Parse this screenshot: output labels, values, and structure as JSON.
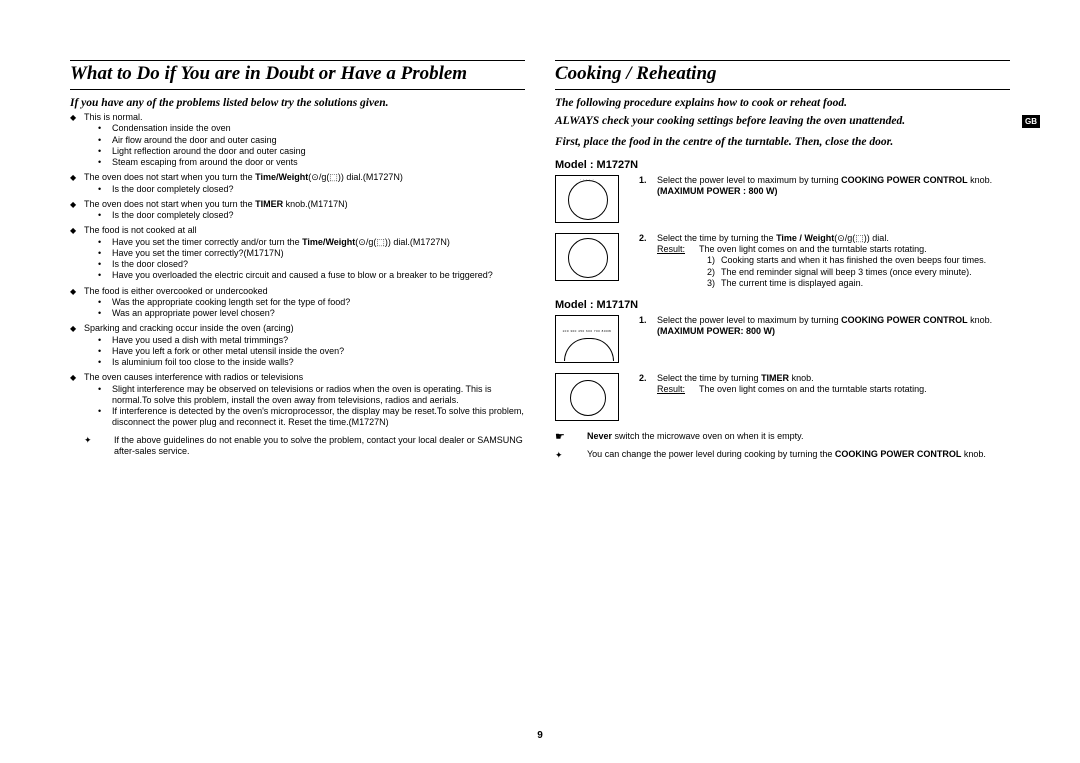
{
  "page_number": "9",
  "gb_badge": "GB",
  "left": {
    "title": "What to Do if You are in Doubt or Have a Problem",
    "intro": "If you have any of the problems listed below try the solutions given.",
    "blocks": [
      {
        "lead": "This is normal.",
        "subs": [
          "Condensation inside the oven",
          "Air flow around the door and outer casing",
          "Light reflection around the door and outer casing",
          "Steam escaping from around the door or vents"
        ]
      },
      {
        "lead_pre": "The oven does not start when you turn the ",
        "lead_bold": "Time/Weight",
        "lead_post": "(⊙/g(⬚)) dial.(M1727N)",
        "subs": [
          "Is the door completely closed?"
        ]
      },
      {
        "lead_pre": "The oven does not start when you turn the ",
        "lead_bold": "TIMER",
        "lead_post": " knob.(M1717N)",
        "subs": [
          "Is the door completely closed?"
        ]
      },
      {
        "lead": "The food is not cooked at all",
        "subs_rich": [
          {
            "pre": "Have you set the timer correctly and/or  turn the ",
            "bold": "Time/Weight",
            "post": "(⊙/g(⬚)) dial.(M1727N)"
          },
          {
            "pre": "Have you set the timer correctly?(M1717N)"
          },
          {
            "pre": "Is the door closed?"
          },
          {
            "pre": "Have you overloaded the electric circuit and caused a fuse to blow or a breaker to be triggered?"
          }
        ]
      },
      {
        "lead": "The food is either overcooked or undercooked",
        "subs": [
          "Was the appropriate cooking length set for the type of food?",
          "Was an appropriate power level chosen?"
        ]
      },
      {
        "lead": "Sparking and cracking occur inside the oven (arcing)",
        "subs": [
          "Have you used a dish with metal trimmings?",
          "Have you left a fork or other metal utensil inside the oven?",
          "Is aluminium foil too close to the inside walls?"
        ]
      },
      {
        "lead": "The oven causes interference with radios or televisions",
        "subs": [
          "Slight interference may be observed on televisions or radios when the oven is operating. This is normal.To solve this problem, install the oven away from televisions, radios and aerials.",
          "If interference is detected by the oven's microprocessor, the display may be reset.To solve this problem, disconnect the power plug and reconnect it. Reset the time.(M1727N)"
        ]
      }
    ],
    "footnote": "If the above guidelines do not enable you to solve the problem, contact your local dealer or SAMSUNG after-sales service."
  },
  "right": {
    "title": "Cooking / Reheating",
    "intro1": "The following procedure explains how to cook or reheat food.",
    "intro2": "ALWAYS check your cooking settings before leaving the oven unattended.",
    "intro3": "First, place the food in the centre of the turntable. Then, close the door.",
    "m1727": {
      "label": "Model : M1727N",
      "step1": {
        "num": "1.",
        "pre": "Select the power level to maximum by turning ",
        "b1": "COOKING POWER CONTROL",
        "mid": " knob.",
        "b2": "MAXIMUM POWER : 800 W)"
      },
      "step2": {
        "num": "2.",
        "line1_pre": "Select the time by turning the ",
        "line1_b": "Time / Weight",
        "line1_post": "(⊙/g(⬚)) dial.",
        "res_label": "Result:",
        "res_text": "The oven light comes on and the turntable starts rotating.",
        "items": [
          "Cooking starts and when it has finished the oven beeps four times.",
          "The end reminder signal will beep 3 times (once every minute).",
          "The current time is displayed again."
        ]
      }
    },
    "m1717": {
      "label": "Model : M1717N",
      "step1": {
        "num": "1.",
        "pre": "Select the power level to maximum by turning ",
        "b1": "COOKING POWER CONTROL",
        "mid": " knob.",
        "b2": "MAXIMUM POWER: 800 W)"
      },
      "step2": {
        "num": "2.",
        "pre": "Select the time by turning ",
        "b1": "TIMER",
        "mid": " knob.",
        "res_label": "Result:",
        "res_text": "The oven light comes on and the turntable starts rotating."
      }
    },
    "note1_b": "Never",
    "note1_rest": " switch the microwave oven on when it is empty.",
    "note2_pre": "You can change the power level during cooking by turning the ",
    "note2_b": "COOKING POWER CONTROL",
    "note2_post": " knob."
  }
}
